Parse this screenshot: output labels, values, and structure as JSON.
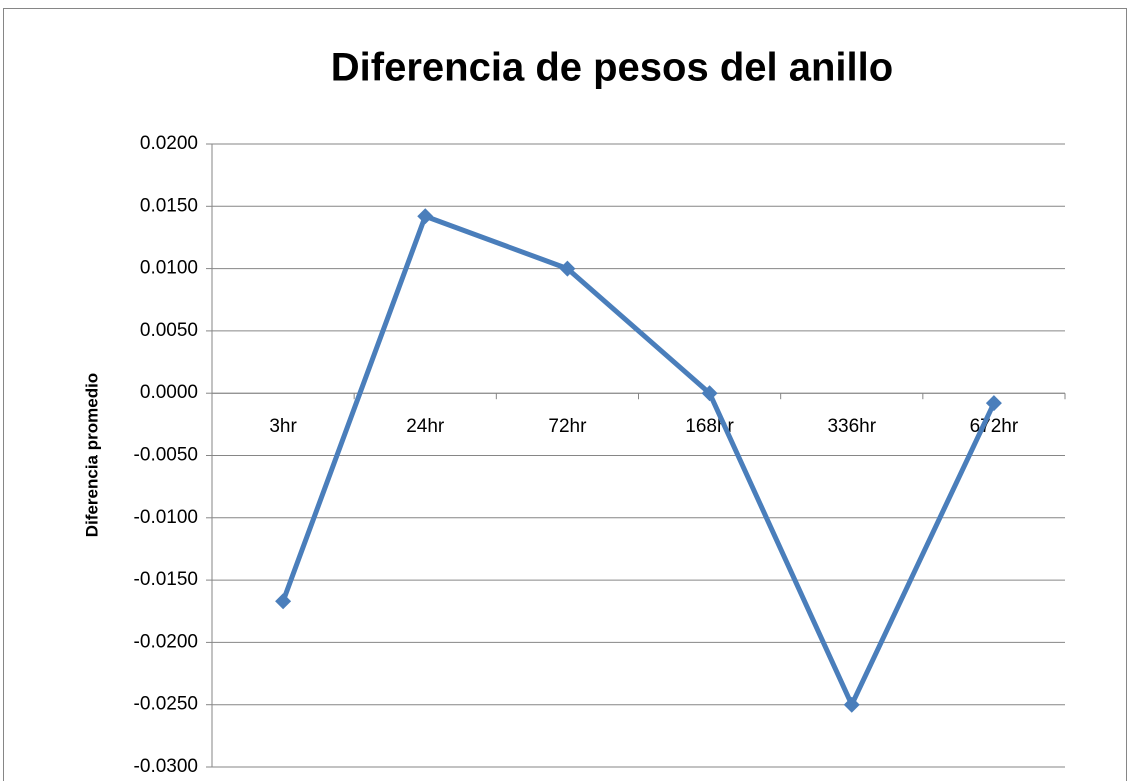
{
  "chart_data": {
    "type": "line",
    "title": "Diferencia de pesos del anillo",
    "y_label": "Diferencia promedio",
    "categories": [
      "3hr",
      "24hr",
      "72hr",
      "168hr",
      "336hr",
      "672hr"
    ],
    "series": [
      {
        "color": "#4a7ebb",
        "values": [
          -0.0167,
          0.0142,
          0.01,
          0.0,
          -0.025,
          -0.0008
        ]
      }
    ],
    "ylim": [
      -0.03,
      0.02
    ],
    "yticks": [
      {
        "value": -0.03,
        "label": "-0.0300"
      },
      {
        "value": -0.025,
        "label": "-0.0250"
      },
      {
        "value": -0.02,
        "label": "-0.0200"
      },
      {
        "value": -0.015,
        "label": "-0.0150"
      },
      {
        "value": -0.01,
        "label": "-0.0100"
      },
      {
        "value": -0.005,
        "label": "-0.0050"
      },
      {
        "value": 0,
        "label": "0.0000"
      },
      {
        "value": 0.005,
        "label": "0.0050"
      },
      {
        "value": 0.01,
        "label": "0.0100"
      },
      {
        "value": 0.015,
        "label": "0.0150"
      },
      {
        "value": 0.02,
        "label": "0.0200"
      }
    ],
    "grid": true
  }
}
